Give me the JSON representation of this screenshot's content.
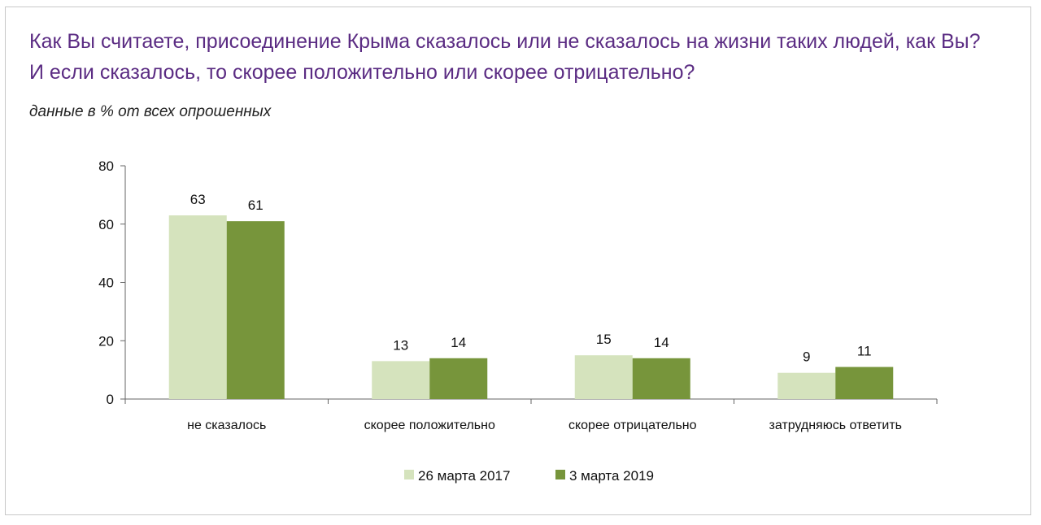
{
  "header": {
    "title_line1": "Как Вы считаете, присоединение Крыма сказалось или не сказалось на жизни таких людей, как Вы?",
    "title_line2": "И если сказалось, то скорее положительно или скорее отрицательно?",
    "subtitle": "данные в % от всех опрошенных"
  },
  "colors": {
    "title": "#5b2c83",
    "series_2017": "#d5e3bd",
    "series_2019": "#77953b"
  },
  "chart_data": {
    "type": "bar",
    "title": "",
    "xlabel": "",
    "ylabel": "",
    "ylim": [
      0,
      80
    ],
    "yticks": [
      0,
      20,
      40,
      60,
      80
    ],
    "grid": false,
    "legend_position": "bottom",
    "categories": [
      "не сказалось",
      "скорее положительно",
      "скорее отрицательно",
      "затрудняюсь ответить"
    ],
    "series": [
      {
        "name": "26 марта 2017",
        "color": "#d5e3bd",
        "values": [
          63,
          13,
          15,
          9
        ]
      },
      {
        "name": "3 марта 2019",
        "color": "#77953b",
        "values": [
          61,
          14,
          14,
          11
        ]
      }
    ]
  }
}
